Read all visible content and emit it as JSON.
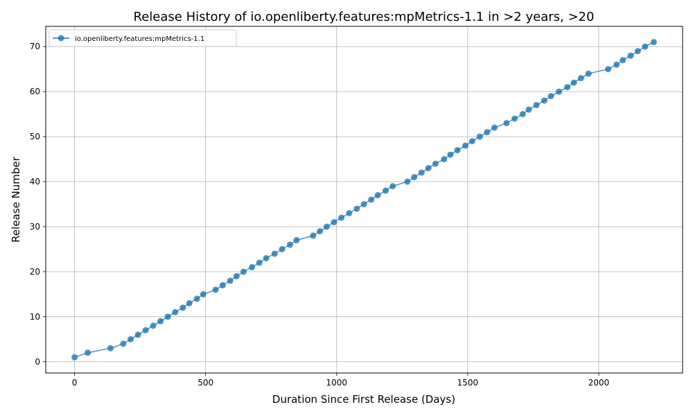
{
  "chart_data": {
    "type": "line",
    "title": "Release History of io.openliberty.features:mpMetrics-1.1 in >2 years, >20",
    "xlabel": "Duration Since First Release (Days)",
    "ylabel": "Release Number",
    "xlim": [
      -110,
      2320
    ],
    "ylim": [
      -2.5,
      74.5
    ],
    "xticks": [
      0,
      500,
      1000,
      1500,
      2000
    ],
    "yticks": [
      0,
      10,
      20,
      30,
      40,
      50,
      60,
      70
    ],
    "grid": true,
    "legend_position": "top-left",
    "color": "#1f77b4",
    "series": [
      {
        "name": "io.openliberty.features:mpMetrics-1.1",
        "x": [
          0,
          50,
          137,
          186,
          214,
          242,
          271,
          300,
          328,
          356,
          384,
          413,
          438,
          467,
          491,
          538,
          565,
          594,
          618,
          645,
          677,
          705,
          731,
          763,
          792,
          822,
          847,
          910,
          936,
          962,
          990,
          1018,
          1048,
          1077,
          1104,
          1132,
          1157,
          1187,
          1214,
          1270,
          1296,
          1324,
          1350,
          1377,
          1410,
          1434,
          1461,
          1491,
          1517,
          1546,
          1574,
          1602,
          1648,
          1679,
          1710,
          1733,
          1762,
          1792,
          1818,
          1848,
          1880,
          1905,
          1932,
          1961,
          2036,
          2068,
          2092,
          2122,
          2149,
          2177,
          2210
        ],
        "y": [
          1,
          2,
          3,
          4,
          5,
          6,
          7,
          8,
          9,
          10,
          11,
          12,
          13,
          14,
          15,
          16,
          17,
          18,
          19,
          20,
          21,
          22,
          23,
          24,
          25,
          26,
          27,
          28,
          29,
          30,
          31,
          32,
          33,
          34,
          35,
          36,
          37,
          38,
          39,
          40,
          41,
          42,
          43,
          44,
          45,
          46,
          47,
          48,
          49,
          50,
          51,
          52,
          53,
          54,
          55,
          56,
          57,
          58,
          59,
          60,
          61,
          62,
          63,
          64,
          65,
          66,
          67,
          68,
          69,
          70,
          71
        ]
      }
    ]
  }
}
